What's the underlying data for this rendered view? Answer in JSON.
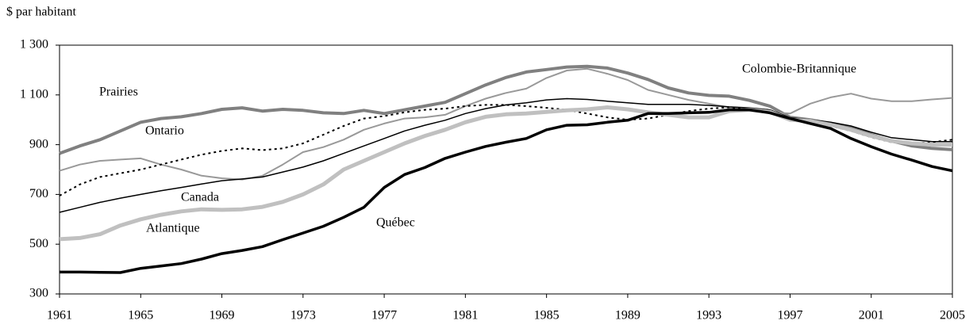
{
  "chart_data": {
    "type": "line",
    "y_label": "$ par habitant",
    "x": [
      1961,
      1962,
      1963,
      1964,
      1965,
      1966,
      1967,
      1968,
      1969,
      1970,
      1971,
      1972,
      1973,
      1974,
      1975,
      1976,
      1977,
      1978,
      1979,
      1980,
      1981,
      1982,
      1983,
      1984,
      1985,
      1986,
      1987,
      1988,
      1989,
      1990,
      1991,
      1992,
      1993,
      1994,
      1995,
      1996,
      1997,
      1998,
      1999,
      2000,
      2001,
      2002,
      2003,
      2004,
      2005
    ],
    "xlim": [
      1961,
      2005
    ],
    "xticks": [
      1961,
      1965,
      1969,
      1973,
      1977,
      1981,
      1985,
      1989,
      1993,
      1997,
      2001,
      2005
    ],
    "ylim": [
      300,
      1300
    ],
    "yticks": [
      {
        "value": 300,
        "label": "300"
      },
      {
        "value": 500,
        "label": "500"
      },
      {
        "value": 700,
        "label": "700"
      },
      {
        "value": 900,
        "label": "900"
      },
      {
        "value": 1100,
        "label": "1 100"
      },
      {
        "value": 1300,
        "label": "1 300"
      }
    ],
    "grid": false,
    "series": [
      {
        "name": "Prairies",
        "color": "#808080",
        "line_width": 4,
        "line_style": "solid",
        "values": [
          865,
          895,
          920,
          955,
          990,
          1005,
          1012,
          1025,
          1042,
          1048,
          1035,
          1042,
          1038,
          1028,
          1025,
          1038,
          1025,
          1040,
          1055,
          1070,
          1105,
          1140,
          1170,
          1192,
          1202,
          1212,
          1215,
          1208,
          1188,
          1162,
          1128,
          1108,
          1098,
          1095,
          1078,
          1055,
          1010,
          1000,
          985,
          970,
          940,
          915,
          895,
          885,
          880
        ]
      },
      {
        "name": "Colombie-Britannique",
        "color": "#999999",
        "line_width": 2,
        "line_style": "solid",
        "values": [
          795,
          820,
          835,
          840,
          845,
          820,
          800,
          775,
          765,
          760,
          775,
          820,
          870,
          890,
          920,
          960,
          985,
          1005,
          1010,
          1020,
          1055,
          1085,
          1108,
          1125,
          1168,
          1198,
          1205,
          1185,
          1160,
          1120,
          1100,
          1080,
          1065,
          1050,
          1040,
          1030,
          1025,
          1065,
          1090,
          1105,
          1085,
          1075,
          1075,
          1082,
          1088
        ]
      },
      {
        "name": "Ontario",
        "color": "#000000",
        "line_width": 2,
        "line_style": "dotted",
        "values": [
          695,
          740,
          770,
          785,
          800,
          820,
          840,
          860,
          875,
          885,
          878,
          885,
          905,
          940,
          975,
          1005,
          1015,
          1030,
          1040,
          1045,
          1055,
          1060,
          1060,
          1055,
          1048,
          1040,
          1025,
          1010,
          1000,
          1005,
          1020,
          1035,
          1045,
          1050,
          1045,
          1040,
          1000,
          990,
          975,
          955,
          930,
          910,
          905,
          910,
          920
        ]
      },
      {
        "name": "Canada",
        "color": "#000000",
        "line_width": 1.5,
        "line_style": "solid",
        "values": [
          628,
          648,
          668,
          685,
          700,
          715,
          728,
          742,
          755,
          762,
          770,
          790,
          810,
          835,
          865,
          895,
          925,
          955,
          978,
          998,
          1025,
          1045,
          1060,
          1068,
          1080,
          1085,
          1082,
          1075,
          1068,
          1062,
          1062,
          1062,
          1058,
          1052,
          1048,
          1040,
          1008,
          1000,
          990,
          975,
          950,
          928,
          920,
          912,
          912
        ]
      },
      {
        "name": "Atlantique",
        "color": "#c0c0c0",
        "line_width": 5,
        "line_style": "solid",
        "values": [
          520,
          525,
          540,
          575,
          600,
          618,
          632,
          640,
          638,
          640,
          650,
          670,
          700,
          740,
          800,
          835,
          870,
          905,
          935,
          960,
          990,
          1012,
          1022,
          1025,
          1032,
          1038,
          1042,
          1050,
          1042,
          1030,
          1020,
          1010,
          1010,
          1035,
          1040,
          1032,
          1000,
          995,
          980,
          960,
          935,
          915,
          905,
          900,
          900
        ]
      },
      {
        "name": "Québec",
        "color": "#000000",
        "line_width": 3.5,
        "line_style": "solid",
        "values": [
          388,
          388,
          387,
          386,
          403,
          412,
          422,
          440,
          462,
          475,
          490,
          518,
          545,
          572,
          608,
          648,
          728,
          780,
          808,
          845,
          870,
          893,
          910,
          925,
          960,
          978,
          980,
          990,
          998,
          1025,
          1025,
          1028,
          1030,
          1040,
          1040,
          1028,
          1005,
          985,
          965,
          925,
          892,
          862,
          838,
          812,
          795
        ]
      }
    ]
  }
}
